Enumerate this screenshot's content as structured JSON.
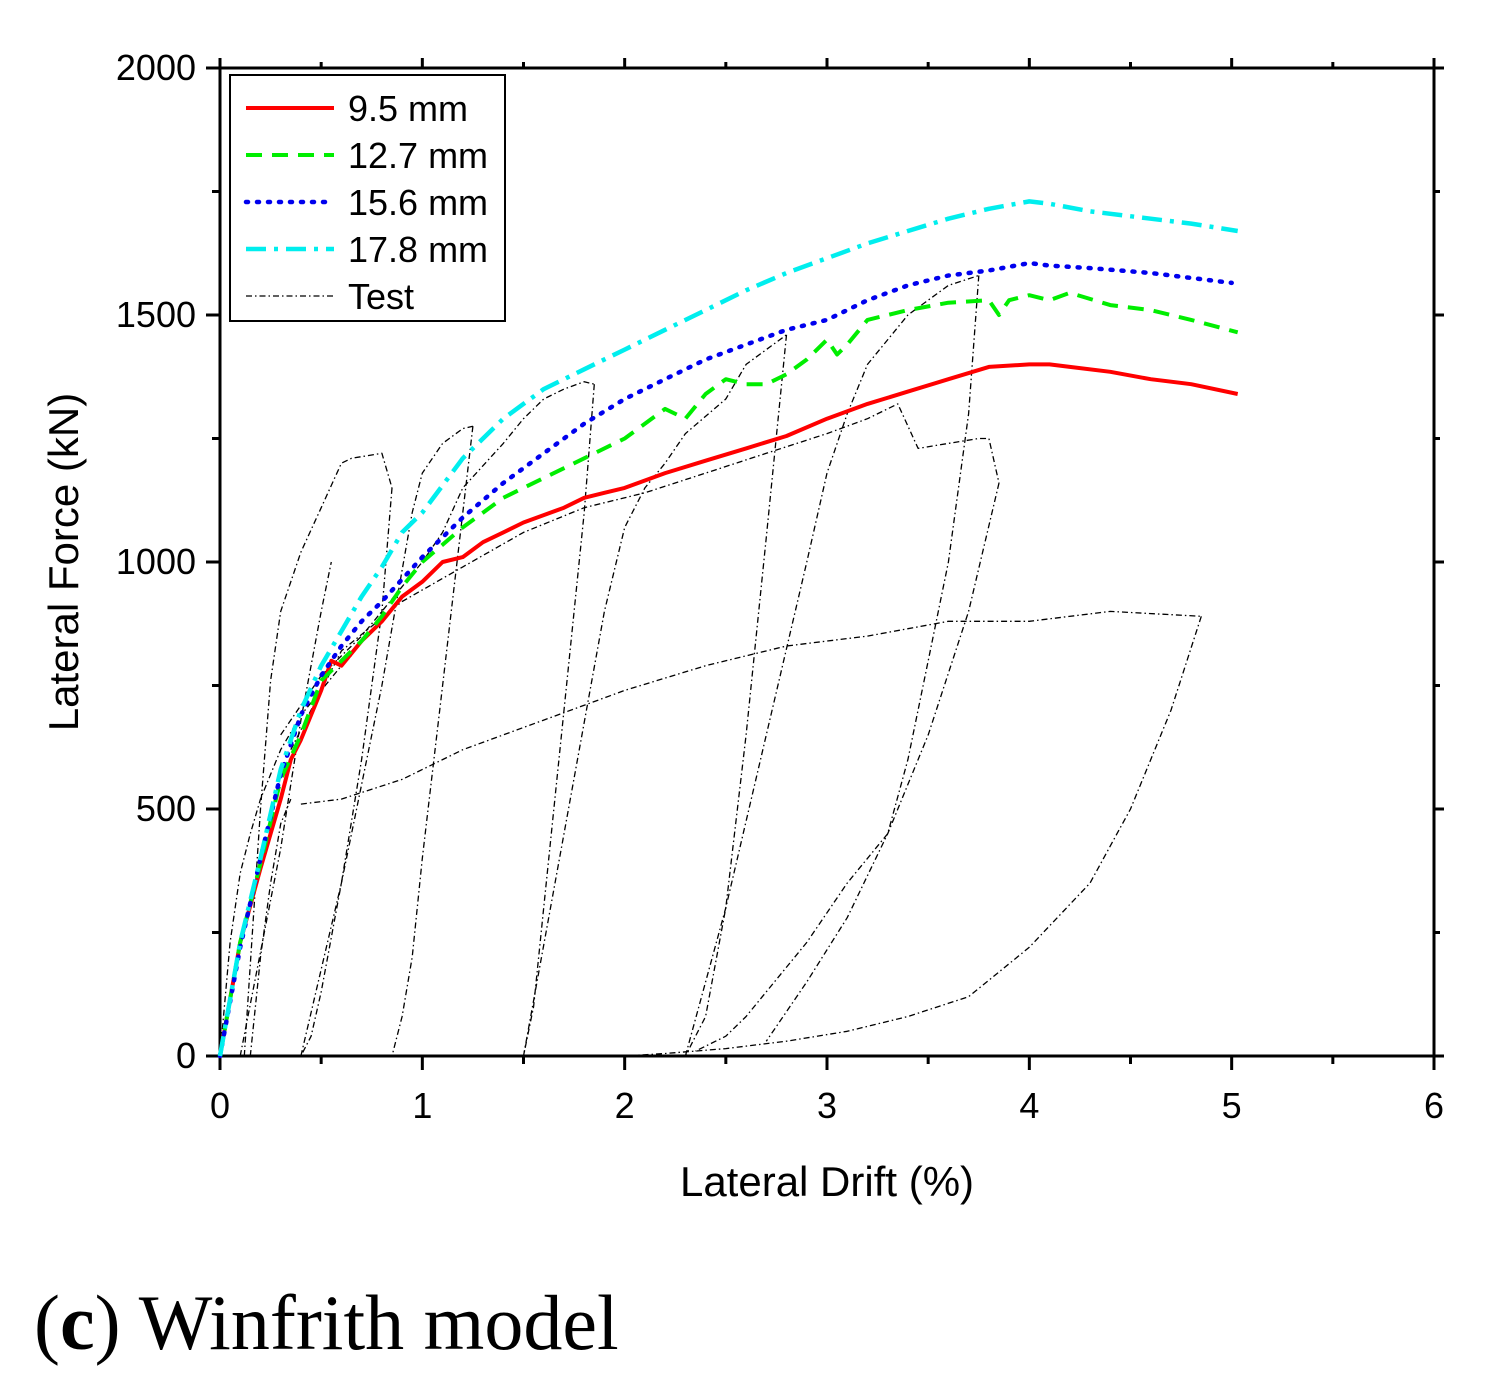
{
  "caption": {
    "letter": "c",
    "text": "Winfrith model"
  },
  "chart_data": {
    "type": "line",
    "xlabel": "Lateral Drift (%)",
    "ylabel": "Lateral Force (kN)",
    "xlim": [
      0,
      6
    ],
    "ylim": [
      0,
      2000
    ],
    "xticks": [
      0,
      1,
      2,
      3,
      4,
      5,
      6
    ],
    "yticks": [
      0,
      500,
      1000,
      1500,
      2000
    ],
    "xtick_labels": [
      "0",
      "1",
      "2",
      "3",
      "4",
      "5",
      "6"
    ],
    "ytick_labels": [
      "0",
      "500",
      "1000",
      "1500",
      "2000"
    ],
    "legend_position": "top-left",
    "series": [
      {
        "name": "9.5 mm",
        "color": "#ff0000",
        "style": "solid",
        "x": [
          0,
          0.1,
          0.2,
          0.3,
          0.35,
          0.4,
          0.5,
          0.55,
          0.6,
          0.7,
          0.8,
          0.9,
          1.0,
          1.1,
          1.2,
          1.3,
          1.4,
          1.5,
          1.6,
          1.7,
          1.8,
          1.9,
          2.0,
          2.2,
          2.4,
          2.6,
          2.8,
          3.0,
          3.2,
          3.4,
          3.6,
          3.8,
          4.0,
          4.1,
          4.2,
          4.4,
          4.6,
          4.8,
          5.03
        ],
        "y": [
          0,
          230,
          380,
          520,
          600,
          640,
          740,
          800,
          790,
          840,
          880,
          930,
          960,
          1000,
          1010,
          1040,
          1060,
          1080,
          1095,
          1110,
          1130,
          1140,
          1150,
          1180,
          1205,
          1230,
          1255,
          1290,
          1320,
          1345,
          1370,
          1395,
          1400,
          1400,
          1395,
          1385,
          1370,
          1360,
          1340
        ]
      },
      {
        "name": "12.7 mm",
        "color": "#00ee00",
        "style": "dashed",
        "x": [
          0,
          0.1,
          0.2,
          0.3,
          0.4,
          0.5,
          0.6,
          0.7,
          0.8,
          0.9,
          1.0,
          1.2,
          1.4,
          1.6,
          1.8,
          2.0,
          2.2,
          2.3,
          2.4,
          2.5,
          2.6,
          2.7,
          2.8,
          2.9,
          3.0,
          3.05,
          3.1,
          3.2,
          3.4,
          3.6,
          3.8,
          3.85,
          3.9,
          4.0,
          4.1,
          4.2,
          4.4,
          4.6,
          4.8,
          5.03
        ],
        "y": [
          0,
          230,
          390,
          560,
          650,
          760,
          800,
          840,
          890,
          950,
          1000,
          1070,
          1130,
          1170,
          1210,
          1250,
          1310,
          1290,
          1340,
          1370,
          1360,
          1360,
          1380,
          1410,
          1450,
          1420,
          1440,
          1490,
          1510,
          1525,
          1530,
          1500,
          1530,
          1540,
          1530,
          1545,
          1520,
          1510,
          1490,
          1465
        ]
      },
      {
        "name": "15.6 mm",
        "color": "#0000ee",
        "style": "dotted",
        "x": [
          0,
          0.1,
          0.2,
          0.3,
          0.4,
          0.5,
          0.6,
          0.7,
          0.8,
          1.0,
          1.2,
          1.4,
          1.6,
          1.8,
          2.0,
          2.2,
          2.4,
          2.6,
          2.8,
          3.0,
          3.2,
          3.4,
          3.6,
          3.8,
          4.0,
          4.1,
          4.3,
          4.6,
          5.0
        ],
        "y": [
          0,
          220,
          400,
          570,
          690,
          770,
          830,
          880,
          920,
          1010,
          1090,
          1160,
          1220,
          1280,
          1330,
          1370,
          1410,
          1440,
          1470,
          1490,
          1530,
          1560,
          1580,
          1590,
          1605,
          1600,
          1595,
          1585,
          1565
        ]
      },
      {
        "name": "17.8 mm",
        "color": "#00eeee",
        "style": "dashdot",
        "x": [
          0,
          0.1,
          0.2,
          0.3,
          0.4,
          0.5,
          0.6,
          0.7,
          0.8,
          0.9,
          1.0,
          1.2,
          1.4,
          1.6,
          1.8,
          2.0,
          2.2,
          2.4,
          2.6,
          2.8,
          3.0,
          3.2,
          3.4,
          3.6,
          3.8,
          4.0,
          4.1,
          4.3,
          4.6,
          4.8,
          5.03
        ],
        "y": [
          0,
          230,
          400,
          580,
          700,
          790,
          860,
          930,
          990,
          1060,
          1100,
          1210,
          1290,
          1350,
          1390,
          1430,
          1470,
          1510,
          1550,
          1585,
          1615,
          1645,
          1670,
          1695,
          1715,
          1730,
          1725,
          1710,
          1695,
          1685,
          1670
        ]
      },
      {
        "name": "Test",
        "color": "#000000",
        "style": "thin-dashdot",
        "segments": [
          {
            "x": [
              0,
              0.05,
              0.1,
              0.15,
              0.2,
              0.3,
              0.4,
              0.5,
              0.6,
              0.65
            ],
            "y": [
              0,
              230,
              370,
              450,
              520,
              620,
              690,
              740,
              790,
              810
            ]
          },
          {
            "x": [
              0.15,
              0.2,
              0.25,
              0.3,
              0.35
            ],
            "y": [
              0,
              200,
              350,
              470,
              520
            ]
          },
          {
            "x": [
              0.1,
              0.3,
              0.4,
              0.5,
              0.55
            ],
            "y": [
              0,
              420,
              680,
              900,
              1000
            ]
          },
          {
            "x": [
              0.12,
              0.2,
              0.25,
              0.3,
              0.4,
              0.5,
              0.6,
              0.65,
              0.8,
              0.85
            ],
            "y": [
              0,
              500,
              760,
              900,
              1020,
              1110,
              1200,
              1210,
              1220,
              1150
            ]
          },
          {
            "x": [
              0.85,
              0.8,
              0.7,
              0.6,
              0.5,
              0.45,
              0.4
            ],
            "y": [
              1150,
              900,
              600,
              350,
              130,
              40,
              0
            ]
          },
          {
            "x": [
              0.4,
              0.6,
              0.8,
              0.95,
              1.0,
              1.1,
              1.2,
              1.25
            ],
            "y": [
              0,
              350,
              750,
              1100,
              1180,
              1240,
              1270,
              1275
            ]
          },
          {
            "x": [
              1.25,
              1.2,
              1.1,
              1.0,
              0.95,
              0.9,
              0.85
            ],
            "y": [
              1275,
              1100,
              750,
              400,
              200,
              80,
              0
            ]
          },
          {
            "x": [
              0.3,
              0.5,
              0.7,
              0.9,
              1.0,
              1.1,
              1.2,
              1.4,
              1.5,
              1.6,
              1.7,
              1.8,
              1.85
            ],
            "y": [
              650,
              770,
              850,
              950,
              1000,
              1060,
              1150,
              1240,
              1290,
              1330,
              1350,
              1365,
              1360
            ]
          },
          {
            "x": [
              1.85,
              1.8,
              1.7,
              1.6,
              1.55,
              1.5
            ],
            "y": [
              1360,
              1100,
              700,
              300,
              100,
              0
            ]
          },
          {
            "x": [
              1.5,
              1.7,
              1.9,
              2.0,
              2.1,
              2.2,
              2.3,
              2.5,
              2.6,
              2.8
            ],
            "y": [
              0,
              450,
              900,
              1070,
              1150,
              1200,
              1260,
              1330,
              1400,
              1460
            ]
          },
          {
            "x": [
              2.8,
              2.7,
              2.6,
              2.5,
              2.4,
              2.3
            ],
            "y": [
              1460,
              1050,
              650,
              300,
              80,
              0
            ]
          },
          {
            "x": [
              2.3,
              2.5,
              2.7,
              2.9,
              3.0,
              3.1,
              3.2,
              3.4,
              3.6,
              3.75
            ],
            "y": [
              0,
              300,
              650,
              1000,
              1180,
              1300,
              1400,
              1500,
              1560,
              1580
            ]
          },
          {
            "x": [
              3.75,
              3.7,
              3.6,
              3.5,
              3.4,
              3.3,
              3.1,
              2.9,
              2.7,
              2.6,
              2.5,
              2.35
            ],
            "y": [
              1580,
              1300,
              1000,
              800,
              600,
              450,
              350,
              230,
              130,
              80,
              40,
              10
            ]
          },
          {
            "x": [
              0.35,
              0.6,
              0.9,
              1.2,
              1.5,
              1.8,
              2.1,
              2.4,
              2.7,
              3.0,
              3.2,
              3.35,
              3.45,
              3.6,
              3.75,
              3.8,
              3.85
            ],
            "y": [
              620,
              820,
              920,
              990,
              1060,
              1110,
              1140,
              1180,
              1220,
              1260,
              1290,
              1320,
              1230,
              1240,
              1250,
              1250,
              1160
            ]
          },
          {
            "x": [
              3.85,
              3.7,
              3.5,
              3.3,
              3.1,
              2.9,
              2.7
            ],
            "y": [
              1160,
              900,
              650,
              450,
              280,
              150,
              30
            ]
          },
          {
            "x": [
              0.4,
              0.6,
              0.9,
              1.2,
              1.6,
              2.0,
              2.4,
              2.8,
              3.2,
              3.6,
              4.0,
              4.4,
              4.85
            ],
            "y": [
              510,
              520,
              560,
              620,
              680,
              740,
              790,
              830,
              850,
              880,
              880,
              900,
              890
            ]
          },
          {
            "x": [
              4.85,
              4.7,
              4.5,
              4.3,
              4.0,
              3.7,
              3.4,
              3.1,
              2.8,
              2.5,
              2.2,
              2.0
            ],
            "y": [
              890,
              700,
              500,
              350,
              220,
              120,
              80,
              50,
              30,
              15,
              5,
              0
            ]
          }
        ]
      }
    ]
  }
}
